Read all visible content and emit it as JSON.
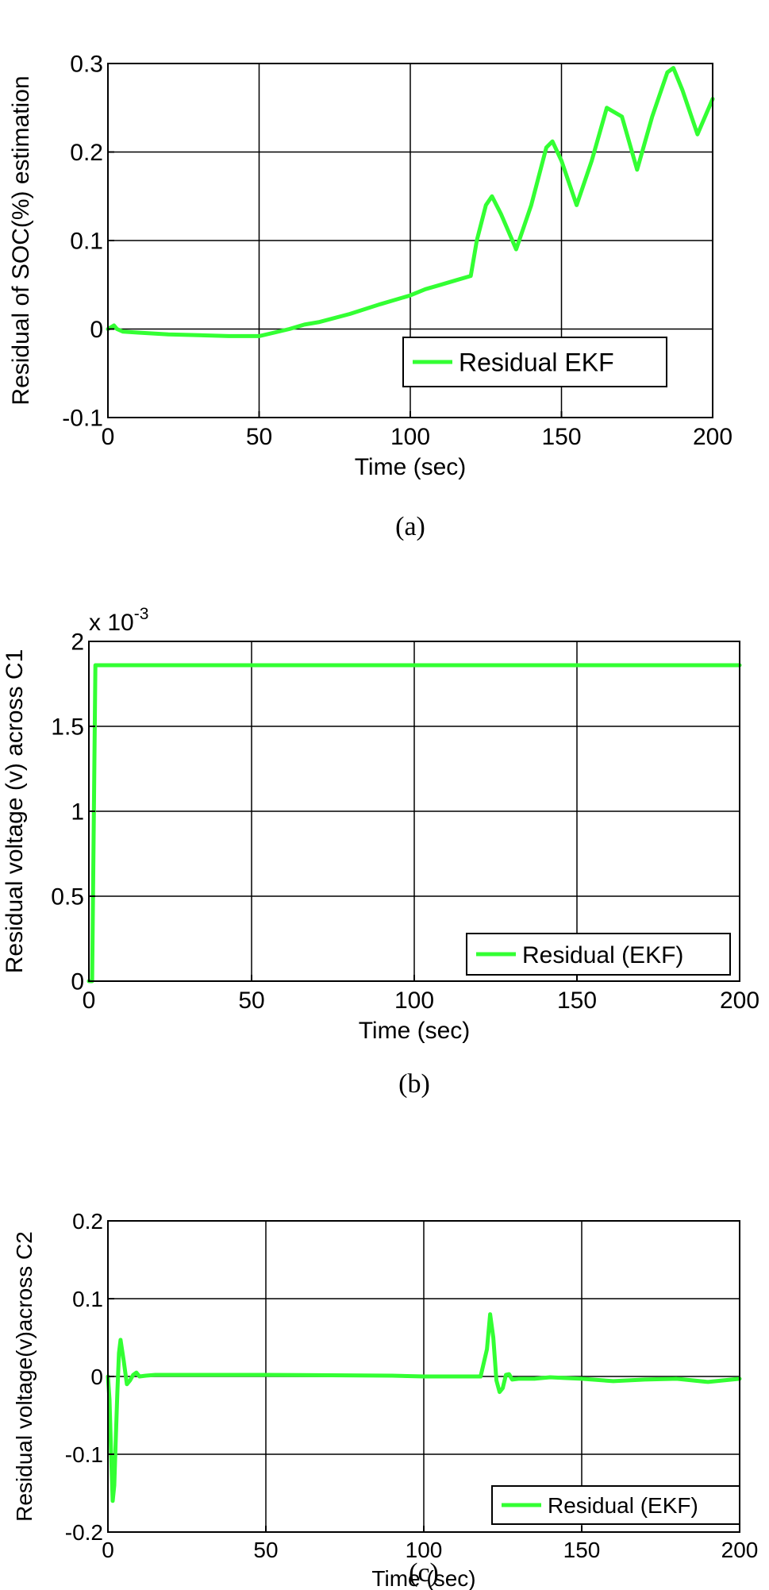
{
  "colors": {
    "series": "#33ff33",
    "grid": "#000000",
    "axes": "#000000"
  },
  "chart_data": [
    {
      "type": "line",
      "caption": "(a)",
      "xlabel": "Time (sec)",
      "ylabel": "Residual of SOC(%) estimation",
      "xlim": [
        0,
        200
      ],
      "ylim": [
        -0.1,
        0.3
      ],
      "xticks": [
        0,
        50,
        100,
        150,
        200
      ],
      "yticks": [
        -0.1,
        0,
        0.1,
        0.2,
        0.3
      ],
      "xtick_labels": [
        "0",
        "50",
        "100",
        "150",
        "200"
      ],
      "ytick_labels": [
        "-0.1",
        "0",
        "0.1",
        "0.2",
        "0.3"
      ],
      "exponent_label": "",
      "grid": true,
      "legend_position": "bottom-right",
      "series": [
        {
          "name": "Residual EKF",
          "x": [
            0,
            1,
            2,
            3,
            5,
            10,
            20,
            30,
            40,
            50,
            55,
            60,
            65,
            70,
            80,
            90,
            100,
            105,
            110,
            115,
            120,
            122,
            125,
            127,
            130,
            135,
            140,
            145,
            147,
            150,
            155,
            160,
            165,
            170,
            175,
            180,
            185,
            187,
            190,
            195,
            200
          ],
          "y": [
            0,
            0.002,
            0.004,
            0,
            -0.003,
            -0.004,
            -0.006,
            -0.007,
            -0.008,
            -0.008,
            -0.004,
            0,
            0.005,
            0.008,
            0.017,
            0.028,
            0.038,
            0.045,
            0.05,
            0.055,
            0.06,
            0.1,
            0.14,
            0.15,
            0.13,
            0.09,
            0.14,
            0.205,
            0.212,
            0.19,
            0.14,
            0.19,
            0.25,
            0.24,
            0.18,
            0.24,
            0.29,
            0.295,
            0.27,
            0.22,
            0.26
          ]
        }
      ]
    },
    {
      "type": "line",
      "caption": "(b)",
      "xlabel": "Time (sec)",
      "ylabel": "Residual voltage (v) across C1",
      "xlim": [
        0,
        200
      ],
      "ylim": [
        0,
        0.002
      ],
      "xticks": [
        0,
        50,
        100,
        150,
        200
      ],
      "yticks": [
        0,
        0.0005,
        0.001,
        0.0015,
        0.002
      ],
      "xtick_labels": [
        "0",
        "50",
        "100",
        "150",
        "200"
      ],
      "ytick_labels": [
        "0",
        "0.5",
        "1",
        "1.5",
        "2"
      ],
      "exponent_label": "x 10",
      "exponent_power": "-3",
      "grid": true,
      "legend_position": "bottom-right",
      "series": [
        {
          "name": "Residual (EKF)",
          "x": [
            0,
            1,
            2,
            200
          ],
          "y": [
            0,
            0,
            0.00186,
            0.00186
          ]
        }
      ]
    },
    {
      "type": "line",
      "caption": "(c)",
      "xlabel": "Time (sec)",
      "ylabel": "Residual voltage(v)across C2",
      "xlim": [
        0,
        200
      ],
      "ylim": [
        -0.2,
        0.2
      ],
      "xticks": [
        0,
        50,
        100,
        150,
        200
      ],
      "yticks": [
        -0.2,
        -0.1,
        0,
        0.1,
        0.2
      ],
      "xtick_labels": [
        "0",
        "50",
        "100",
        "150",
        "200"
      ],
      "ytick_labels": [
        "-0.2",
        "-0.1",
        "0",
        "0.1",
        "0.2"
      ],
      "exponent_label": "",
      "grid": true,
      "legend_position": "bottom-right",
      "series": [
        {
          "name": "Residual (EKF)",
          "x": [
            0,
            0.5,
            1,
            1.5,
            2,
            2.5,
            3,
            3.5,
            4,
            5,
            6,
            7,
            8,
            9,
            10,
            12,
            15,
            20,
            50,
            90,
            100,
            118,
            120,
            121,
            122,
            123,
            124,
            125,
            126,
            127,
            128,
            130,
            135,
            140,
            145,
            150,
            160,
            170,
            180,
            190,
            200
          ],
          "y": [
            0,
            -0.03,
            -0.1,
            -0.16,
            -0.14,
            -0.08,
            -0.02,
            0.03,
            0.047,
            0.02,
            -0.01,
            -0.005,
            0.002,
            0.005,
            0,
            0.001,
            0.002,
            0.002,
            0.002,
            0.001,
            0,
            0,
            0.035,
            0.08,
            0.05,
            -0.005,
            -0.02,
            -0.015,
            0.002,
            0.003,
            -0.004,
            -0.003,
            -0.003,
            -0.001,
            -0.002,
            -0.003,
            -0.006,
            -0.004,
            -0.003,
            -0.007,
            -0.003
          ]
        }
      ]
    }
  ]
}
